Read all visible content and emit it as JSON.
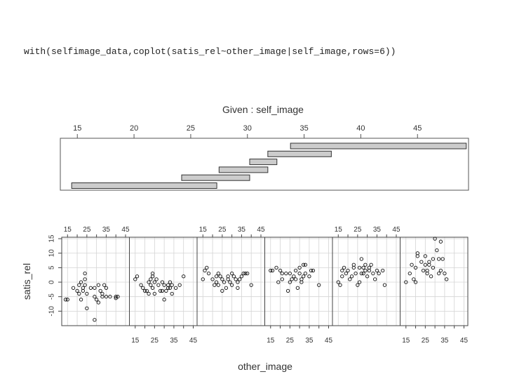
{
  "code": {
    "command": "with(selfimage_data,coplot(satis_rel~other_image|self_image,rows=6))"
  },
  "chart_data": {
    "type": "scatter",
    "given_panel": {
      "title": "Given : self_image",
      "variable": "self_image",
      "ticks": [
        15,
        20,
        25,
        30,
        35,
        40,
        45
      ],
      "xlim": [
        13.5,
        49.5
      ],
      "intervals": [
        [
          14.5,
          27.3
        ],
        [
          24.2,
          30.2
        ],
        [
          27.5,
          31.8
        ],
        [
          30.2,
          32.6
        ],
        [
          31.8,
          37.4
        ],
        [
          33.8,
          49.3
        ]
      ]
    },
    "panels": {
      "xlabel": "other_image",
      "ylabel": "satis_rel",
      "xlim": [
        12,
        47
      ],
      "ylim": [
        -15,
        15.5
      ],
      "x_ticks": [
        15,
        25,
        35,
        45
      ],
      "x_minor_ticks": [
        15,
        20,
        25,
        30,
        35,
        40,
        45
      ],
      "y_ticks": [
        -10,
        -5,
        0,
        5,
        10,
        15
      ],
      "top_label_panels": [
        0,
        2,
        4
      ],
      "bottom_label_panels": [
        1,
        3,
        5
      ],
      "series": [
        {
          "points": [
            [
              14,
              -6
            ],
            [
              15,
              -6
            ],
            [
              18,
              -2
            ],
            [
              20,
              -3
            ],
            [
              21,
              -1
            ],
            [
              21,
              -4
            ],
            [
              22,
              -6
            ],
            [
              22,
              0
            ],
            [
              23,
              -2
            ],
            [
              23,
              -3
            ],
            [
              24,
              -1
            ],
            [
              24,
              1
            ],
            [
              24,
              3
            ],
            [
              25,
              -4
            ],
            [
              25,
              -9
            ],
            [
              27,
              -2
            ],
            [
              29,
              -2
            ],
            [
              29,
              -5
            ],
            [
              29,
              -13
            ],
            [
              30,
              -6
            ],
            [
              31,
              -7
            ],
            [
              31,
              -1
            ],
            [
              32,
              -3
            ],
            [
              33,
              -5
            ],
            [
              33,
              -4
            ],
            [
              34,
              -1
            ],
            [
              35,
              -2
            ],
            [
              35,
              -5
            ],
            [
              37,
              -5
            ],
            [
              40,
              -5
            ],
            [
              40,
              -5.5
            ],
            [
              41,
              -5
            ]
          ]
        },
        {
          "points": [
            [
              15,
              1
            ],
            [
              16,
              2
            ],
            [
              18,
              -1
            ],
            [
              19,
              -2
            ],
            [
              20,
              -3
            ],
            [
              21,
              -3
            ],
            [
              22,
              0
            ],
            [
              22,
              -4
            ],
            [
              23,
              -1
            ],
            [
              23,
              1
            ],
            [
              24,
              -2
            ],
            [
              24,
              3
            ],
            [
              24,
              2
            ],
            [
              25,
              -4
            ],
            [
              25,
              0
            ],
            [
              26,
              1
            ],
            [
              27,
              -1
            ],
            [
              28,
              -3
            ],
            [
              29,
              -3
            ],
            [
              29,
              0
            ],
            [
              30,
              -1
            ],
            [
              30,
              -6
            ],
            [
              31,
              -3
            ],
            [
              32,
              -1
            ],
            [
              32,
              -2
            ],
            [
              33,
              -2
            ],
            [
              33,
              0
            ],
            [
              34,
              -4
            ],
            [
              34,
              -1
            ],
            [
              36,
              -2
            ],
            [
              38,
              -1
            ],
            [
              40,
              2
            ]
          ]
        },
        {
          "points": [
            [
              15,
              1
            ],
            [
              16,
              4
            ],
            [
              17,
              5
            ],
            [
              18,
              3
            ],
            [
              20,
              1
            ],
            [
              21,
              -1
            ],
            [
              22,
              2
            ],
            [
              22,
              0
            ],
            [
              23,
              3
            ],
            [
              23,
              -1
            ],
            [
              24,
              2
            ],
            [
              25,
              1
            ],
            [
              25,
              -3
            ],
            [
              26,
              0
            ],
            [
              27,
              -2
            ],
            [
              28,
              1
            ],
            [
              28,
              2
            ],
            [
              29,
              0
            ],
            [
              30,
              3
            ],
            [
              30,
              -1
            ],
            [
              31,
              2
            ],
            [
              32,
              1
            ],
            [
              33,
              -2
            ],
            [
              33,
              0
            ],
            [
              34,
              1
            ],
            [
              35,
              2
            ],
            [
              36,
              3
            ],
            [
              37,
              3
            ],
            [
              38,
              3
            ],
            [
              40,
              -1
            ]
          ]
        },
        {
          "points": [
            [
              15,
              4
            ],
            [
              16,
              4
            ],
            [
              18,
              5
            ],
            [
              19,
              0
            ],
            [
              20,
              4
            ],
            [
              21,
              3
            ],
            [
              21,
              1
            ],
            [
              23,
              3
            ],
            [
              24,
              -3
            ],
            [
              25,
              0
            ],
            [
              25,
              3
            ],
            [
              26,
              1
            ],
            [
              27,
              2
            ],
            [
              28,
              4
            ],
            [
              28,
              1
            ],
            [
              29,
              -2
            ],
            [
              30,
              5
            ],
            [
              30,
              3
            ],
            [
              31,
              0
            ],
            [
              31,
              1
            ],
            [
              32,
              2
            ],
            [
              32,
              6
            ],
            [
              33,
              6
            ],
            [
              33,
              3
            ],
            [
              35,
              2
            ],
            [
              36,
              4
            ],
            [
              37,
              4
            ],
            [
              40,
              -1
            ]
          ]
        },
        {
          "points": [
            [
              15,
              0
            ],
            [
              16,
              -1
            ],
            [
              17,
              2
            ],
            [
              17,
              4
            ],
            [
              18,
              5
            ],
            [
              19,
              3
            ],
            [
              20,
              4
            ],
            [
              21,
              1
            ],
            [
              22,
              2
            ],
            [
              23,
              6
            ],
            [
              23,
              5
            ],
            [
              24,
              3
            ],
            [
              25,
              -1
            ],
            [
              26,
              5
            ],
            [
              26,
              0
            ],
            [
              27,
              3
            ],
            [
              27,
              8
            ],
            [
              28,
              5
            ],
            [
              28,
              3
            ],
            [
              29,
              4
            ],
            [
              29,
              6
            ],
            [
              30,
              2
            ],
            [
              31,
              4
            ],
            [
              31,
              5
            ],
            [
              32,
              6
            ],
            [
              33,
              3
            ],
            [
              34,
              1
            ],
            [
              35,
              4
            ],
            [
              36,
              3
            ],
            [
              38,
              4
            ],
            [
              39,
              -1
            ]
          ]
        },
        {
          "points": [
            [
              15,
              0
            ],
            [
              17,
              3
            ],
            [
              18,
              6
            ],
            [
              19,
              1
            ],
            [
              20,
              5
            ],
            [
              20,
              0
            ],
            [
              21,
              10
            ],
            [
              21,
              9
            ],
            [
              23,
              7
            ],
            [
              24,
              4
            ],
            [
              25,
              9
            ],
            [
              25,
              6
            ],
            [
              26,
              3
            ],
            [
              26,
              4
            ],
            [
              27,
              6
            ],
            [
              27,
              7
            ],
            [
              28,
              2
            ],
            [
              29,
              8
            ],
            [
              29,
              5
            ],
            [
              30,
              15
            ],
            [
              31,
              11
            ],
            [
              32,
              8
            ],
            [
              32,
              3
            ],
            [
              33,
              4
            ],
            [
              33,
              14
            ],
            [
              34,
              8
            ],
            [
              35,
              3
            ],
            [
              36,
              1
            ]
          ]
        }
      ]
    }
  }
}
